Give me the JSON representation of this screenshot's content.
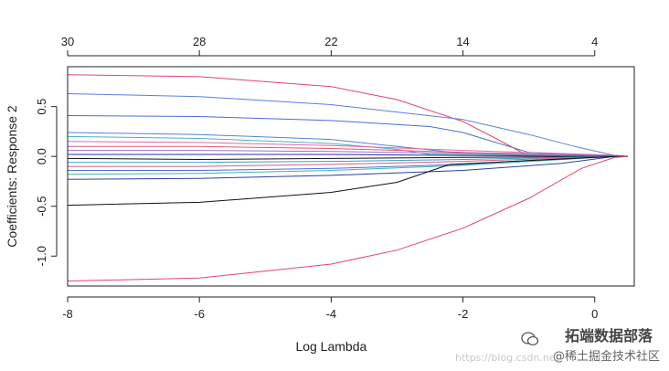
{
  "chart_data": {
    "type": "line",
    "title": "",
    "xlabel": "Log Lambda",
    "ylabel": "Coefficients: Response 2",
    "xlim": [
      -8,
      0.6
    ],
    "ylim": [
      -1.3,
      0.9
    ],
    "x_ticks": [
      -8,
      -6,
      -4,
      -2,
      0
    ],
    "x_tick_labels": [
      "-8",
      "-6",
      "-4",
      "-2",
      "0"
    ],
    "y_ticks": [
      -1.0,
      -0.5,
      0.0,
      0.5
    ],
    "y_tick_labels": [
      "-1.0",
      "-0.5",
      "0.0",
      "0.5"
    ],
    "top_axis_label_x": [
      -8,
      -6,
      -4,
      -2,
      0
    ],
    "top_axis_labels": [
      "30",
      "28",
      "22",
      "14",
      "4"
    ],
    "grid": false,
    "series": [
      {
        "color": "#e0446a",
        "x": [
          -8,
          -6,
          -4,
          -3,
          -2,
          -1.5,
          -1.05,
          0,
          0.5
        ],
        "y": [
          0.82,
          0.8,
          0.7,
          0.57,
          0.35,
          0.18,
          0.02,
          0.01,
          0
        ]
      },
      {
        "color": "#5b7fd8",
        "x": [
          -8,
          -6,
          -4,
          -2,
          -1,
          -0.3,
          0.3,
          0.5
        ],
        "y": [
          0.63,
          0.6,
          0.52,
          0.37,
          0.22,
          0.1,
          0.01,
          0
        ]
      },
      {
        "color": "#4a6fcf",
        "x": [
          -8,
          -6,
          -4,
          -2.5,
          -2,
          -1,
          0.3,
          0.5
        ],
        "y": [
          0.41,
          0.4,
          0.36,
          0.3,
          0.24,
          0.04,
          0.01,
          0
        ]
      },
      {
        "color": "#5b7fd8",
        "x": [
          -8,
          -6,
          -4,
          -3,
          -2,
          0.3,
          0.5
        ],
        "y": [
          0.24,
          0.22,
          0.17,
          0.1,
          0.03,
          0.01,
          0
        ]
      },
      {
        "color": "#4fb3b3",
        "x": [
          -8,
          -6,
          -4,
          -3,
          -2.5,
          0.3,
          0.5
        ],
        "y": [
          0.2,
          0.18,
          0.13,
          0.07,
          0.02,
          0.01,
          0
        ]
      },
      {
        "color": "#e06aa0",
        "x": [
          -8,
          -6,
          -4,
          -2,
          0.3,
          0.5
        ],
        "y": [
          0.15,
          0.14,
          0.11,
          0.06,
          0.01,
          0
        ]
      },
      {
        "color": "#d85a7a",
        "x": [
          -8,
          -6,
          -4,
          -2,
          0.3,
          0.5
        ],
        "y": [
          0.1,
          0.1,
          0.08,
          0.04,
          0.01,
          0
        ]
      },
      {
        "color": "#9a6fd0",
        "x": [
          -8,
          -6,
          -4,
          -2,
          0.3,
          0.5
        ],
        "y": [
          0.06,
          0.06,
          0.05,
          0.03,
          0.01,
          0
        ]
      },
      {
        "color": "#2a2ab0",
        "x": [
          -8,
          -6,
          -4,
          -2,
          0.3,
          0.5
        ],
        "y": [
          0.02,
          0.02,
          0.02,
          0.01,
          0,
          0
        ]
      },
      {
        "color": "#111111",
        "x": [
          -8,
          -6,
          -4,
          -2,
          0.3,
          0.5
        ],
        "y": [
          -0.02,
          -0.03,
          -0.02,
          -0.01,
          0,
          0
        ]
      },
      {
        "color": "#3aa0c0",
        "x": [
          -8,
          -6,
          -4,
          -2,
          0.3,
          0.5
        ],
        "y": [
          -0.06,
          -0.06,
          -0.05,
          -0.03,
          0,
          0
        ]
      },
      {
        "color": "#d25c8e",
        "x": [
          -8,
          -6,
          -4,
          -2,
          0.3,
          0.5
        ],
        "y": [
          -0.1,
          -0.1,
          -0.08,
          -0.05,
          0,
          0
        ]
      },
      {
        "color": "#4a6fcf",
        "x": [
          -8,
          -6,
          -4,
          -2,
          -1,
          0.3,
          0.5
        ],
        "y": [
          -0.14,
          -0.14,
          -0.12,
          -0.08,
          -0.04,
          0,
          0
        ]
      },
      {
        "color": "#3cb8a8",
        "x": [
          -8,
          -6,
          -4,
          -2,
          0.3,
          0.5
        ],
        "y": [
          -0.18,
          -0.17,
          -0.14,
          -0.09,
          0,
          0
        ]
      },
      {
        "color": "#2b3fa0",
        "x": [
          -8,
          -6,
          -4,
          -2,
          -0.5,
          0.3,
          0.5
        ],
        "y": [
          -0.23,
          -0.22,
          -0.19,
          -0.14,
          -0.07,
          0,
          0
        ]
      },
      {
        "color": "#111111",
        "x": [
          -8,
          -6,
          -4,
          -3,
          -2.2,
          0.3,
          0.5
        ],
        "y": [
          -0.49,
          -0.46,
          -0.36,
          -0.26,
          -0.08,
          0,
          0
        ]
      },
      {
        "color": "#e0446a",
        "x": [
          -8,
          -6,
          -4,
          -3,
          -2,
          -1,
          -0.2,
          0.3,
          0.5
        ],
        "y": [
          -1.25,
          -1.22,
          -1.08,
          -0.94,
          -0.72,
          -0.42,
          -0.12,
          -0.01,
          0
        ]
      }
    ]
  },
  "watermark": {
    "brand": "拓端数据部落",
    "sub": "@稀土掘金技术社区",
    "url": "https://blog.csdn.net"
  }
}
